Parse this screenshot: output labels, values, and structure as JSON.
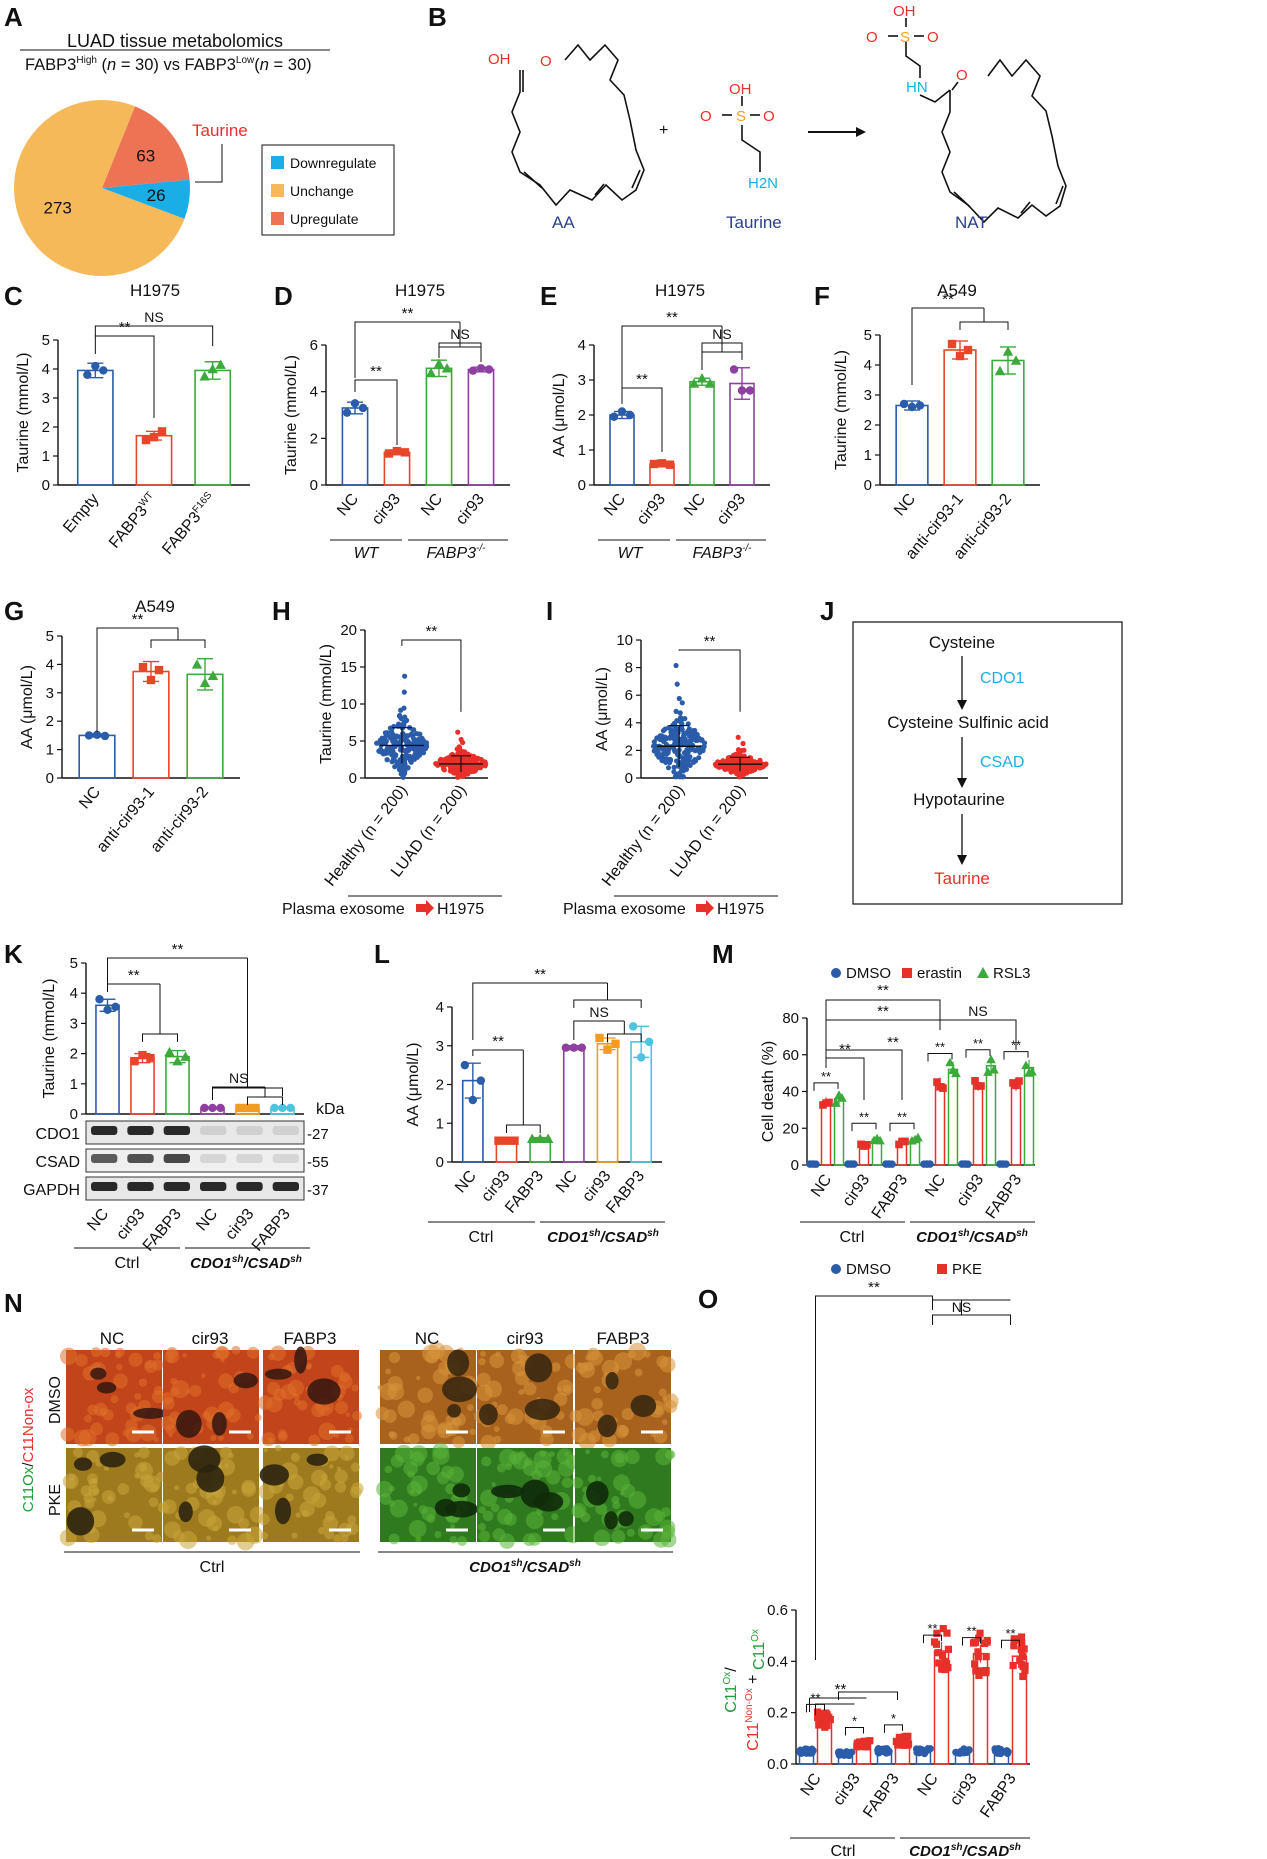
{
  "panels": {
    "A": {
      "label": "A",
      "title": "LUAD tissue metabolomics",
      "subtitle": "FABP3High (n = 30) vs FABP3Low (n = 30)",
      "callout": "Taurine",
      "chart_data": {
        "type": "pie",
        "slices": [
          {
            "name": "Unchange",
            "value": 273,
            "color": "#F5B95A"
          },
          {
            "name": "Upregulate",
            "value": 63,
            "color": "#EE7355"
          },
          {
            "name": "Downregulate",
            "value": 26,
            "color": "#1BAEE6"
          }
        ],
        "legend": [
          "Downregulate",
          "Unchange",
          "Upregulate"
        ],
        "legend_position": "right"
      }
    },
    "B": {
      "label": "B",
      "names": [
        "AA",
        "Taurine",
        "NAT"
      ],
      "plus": "+",
      "atoms": {
        "oh": "OH",
        "o": "O",
        "s": "S",
        "hn": "HN",
        "h2n": "H2N"
      }
    },
    "C": {
      "label": "C",
      "title": "H1975",
      "chart_data": {
        "type": "bar",
        "ylabel": "Taurine (mmol/L)",
        "ylim": [
          0,
          5
        ],
        "yticks": [
          0,
          1,
          2,
          3,
          4,
          5
        ],
        "categories": [
          "Empty",
          "FABP3WT",
          "FABP3F16S"
        ],
        "values": [
          3.95,
          1.7,
          3.95
        ],
        "errors": [
          0.25,
          0.15,
          0.3
        ],
        "points": [
          [
            3.8,
            4.1,
            3.95
          ],
          [
            1.55,
            1.65,
            1.85
          ],
          [
            3.75,
            4.0,
            4.15
          ]
        ],
        "colors": [
          "#2A5CAA",
          "#E8462A",
          "#3BAA3B"
        ],
        "markers": [
          "circle",
          "square",
          "triangle"
        ],
        "sig": [
          {
            "a": 0,
            "b": 1,
            "text": "**"
          },
          {
            "a": 0,
            "b": 2,
            "text": "NS"
          }
        ]
      }
    },
    "D": {
      "label": "D",
      "title": "H1975",
      "chart_data": {
        "type": "bar",
        "ylabel": "Taurine (mmol/L)",
        "ylim": [
          0,
          6
        ],
        "yticks": [
          0,
          2,
          4,
          6
        ],
        "categories": [
          "NC",
          "cir93",
          "NC",
          "cir93"
        ],
        "groups": [
          "WT",
          "FABP3-/-"
        ],
        "values": [
          3.3,
          1.4,
          5.0,
          4.95
        ],
        "errors": [
          0.25,
          0.1,
          0.35,
          0.1
        ],
        "points": [
          [
            3.1,
            3.5,
            3.3
          ],
          [
            1.35,
            1.45,
            1.4
          ],
          [
            4.8,
            5.2,
            5.0
          ],
          [
            4.9,
            5.0,
            4.95
          ]
        ],
        "colors": [
          "#2A5CAA",
          "#E8462A",
          "#3BAA3B",
          "#8E3FA0"
        ],
        "markers": [
          "circle",
          "square",
          "triangle",
          "circle"
        ],
        "sig": [
          {
            "a": 0,
            "b": 1,
            "text": "**"
          },
          {
            "a": 0,
            "b": [
              2,
              3
            ],
            "text": "**"
          },
          {
            "a": 2,
            "b": 3,
            "text": "NS"
          }
        ]
      }
    },
    "E": {
      "label": "E",
      "title": "H1975",
      "chart_data": {
        "type": "bar",
        "ylabel": "AA (μmol/L)",
        "ylim": [
          0,
          4
        ],
        "yticks": [
          0,
          1,
          2,
          3,
          4
        ],
        "categories": [
          "NC",
          "cir93",
          "NC",
          "cir93"
        ],
        "groups": [
          "WT",
          "FABP3-/-"
        ],
        "values": [
          2.0,
          0.6,
          2.95,
          2.9
        ],
        "errors": [
          0.1,
          0.05,
          0.1,
          0.45
        ],
        "points": [
          [
            1.95,
            2.1,
            2.0
          ],
          [
            0.6,
            0.62,
            0.58
          ],
          [
            2.9,
            3.05,
            2.9
          ],
          [
            3.3,
            2.7,
            2.7
          ]
        ],
        "colors": [
          "#2A5CAA",
          "#E8462A",
          "#3BAA3B",
          "#8E3FA0"
        ],
        "markers": [
          "circle",
          "square",
          "triangle",
          "circle"
        ],
        "sig": [
          {
            "a": 0,
            "b": 1,
            "text": "**"
          },
          {
            "a": 0,
            "b": [
              2,
              3
            ],
            "text": "**"
          },
          {
            "a": 2,
            "b": 3,
            "text": "NS"
          }
        ]
      }
    },
    "F": {
      "label": "F",
      "title": "A549",
      "chart_data": {
        "type": "bar",
        "ylabel": "Taurine (mmol/L)",
        "ylim": [
          0,
          5
        ],
        "yticks": [
          0,
          1,
          2,
          3,
          4,
          5
        ],
        "categories": [
          "NC",
          "anti-cir93-1",
          "anti-cir93-2"
        ],
        "values": [
          2.65,
          4.5,
          4.15
        ],
        "errors": [
          0.15,
          0.3,
          0.45
        ],
        "points": [
          [
            2.7,
            2.6,
            2.65
          ],
          [
            4.7,
            4.3,
            4.5
          ],
          [
            3.8,
            4.45,
            4.15
          ]
        ],
        "colors": [
          "#2A5CAA",
          "#E8462A",
          "#3BAA3B"
        ],
        "markers": [
          "circle",
          "square",
          "triangle"
        ],
        "sig": [
          {
            "a": 0,
            "b": [
              1,
              2
            ],
            "text": "**"
          }
        ]
      }
    },
    "G": {
      "label": "G",
      "title": "A549",
      "chart_data": {
        "type": "bar",
        "ylabel": "AA (μmol/L)",
        "ylim": [
          0,
          5
        ],
        "yticks": [
          0,
          1,
          2,
          3,
          4,
          5
        ],
        "categories": [
          "NC",
          "anti-cir93-1",
          "anti-cir93-2"
        ],
        "values": [
          1.5,
          3.75,
          3.65
        ],
        "errors": [
          0.05,
          0.35,
          0.55
        ],
        "points": [
          [
            1.5,
            1.52,
            1.48
          ],
          [
            3.9,
            3.45,
            3.8
          ],
          [
            4.0,
            3.35,
            3.6
          ]
        ],
        "colors": [
          "#2A5CAA",
          "#E8462A",
          "#3BAA3B"
        ],
        "markers": [
          "circle",
          "square",
          "triangle"
        ],
        "sig": [
          {
            "a": 0,
            "b": [
              1,
              2
            ],
            "text": "**"
          }
        ]
      }
    },
    "H": {
      "label": "H",
      "footer_left": "Plasma exosome",
      "footer_right": "H1975",
      "chart_data": {
        "type": "scatter",
        "ylabel": "Taurine (mmol/L)",
        "ylim": [
          0,
          20
        ],
        "yticks": [
          0,
          5,
          10,
          15,
          20
        ],
        "categories": [
          "Healthy (n = 200)",
          "LUAD (n = 200)"
        ],
        "n": [
          200,
          200
        ],
        "means": [
          4.4,
          1.9
        ],
        "sd": [
          2.4,
          1.1
        ],
        "max": [
          16.5,
          6.5
        ],
        "colors": [
          "#2A5CAA",
          "#E8302A"
        ],
        "sig": "**"
      }
    },
    "I": {
      "label": "I",
      "footer_left": "Plasma exosome",
      "footer_right": "H1975",
      "chart_data": {
        "type": "scatter",
        "ylabel": "AA (μmol/L)",
        "ylim": [
          0,
          10
        ],
        "yticks": [
          0,
          2,
          4,
          6,
          8,
          10
        ],
        "categories": [
          "Healthy (n = 200)",
          "LUAD (n = 200)"
        ],
        "n": [
          200,
          200
        ],
        "means": [
          2.3,
          1.0
        ],
        "sd": [
          1.5,
          0.5
        ],
        "max": [
          8.5,
          3.5
        ],
        "colors": [
          "#2A5CAA",
          "#E8302A"
        ],
        "sig": "**"
      }
    },
    "J": {
      "label": "J",
      "steps": [
        "Cysteine",
        "Cysteine Sulfinic acid",
        "Hypotaurine",
        "Taurine"
      ],
      "enzymes": [
        "CDO1",
        "CSAD"
      ]
    },
    "K": {
      "label": "K",
      "wb_rows": [
        "CDO1",
        "CSAD",
        "GAPDH"
      ],
      "kda_label": "kDa",
      "kda": [
        "27",
        "55",
        "37"
      ],
      "groups": [
        "Ctrl",
        "CDO1sh/CSADsh"
      ],
      "chart_data": {
        "type": "bar",
        "ylabel": "Taurine (mmol/L)",
        "ylim": [
          0,
          5
        ],
        "yticks": [
          0,
          1,
          2,
          3,
          4,
          5
        ],
        "categories": [
          "NC",
          "cir93",
          "FABP3",
          "NC",
          "cir93",
          "FABP3"
        ],
        "values": [
          3.6,
          1.85,
          1.9,
          0.2,
          0.2,
          0.2
        ],
        "errors": [
          0.2,
          0.15,
          0.2,
          0.03,
          0.03,
          0.03
        ],
        "points": [
          [
            3.8,
            3.45,
            3.55
          ],
          [
            1.75,
            1.95,
            1.85
          ],
          [
            2.05,
            1.75,
            1.9
          ],
          [
            0.2,
            0.2,
            0.2
          ],
          [
            0.2,
            0.2,
            0.2
          ],
          [
            0.2,
            0.2,
            0.2
          ]
        ],
        "colors": [
          "#2A5CAA",
          "#E8462A",
          "#3BAA3B",
          "#8E3FA0",
          "#F39C22",
          "#4EC3E0"
        ],
        "markers": [
          "circle",
          "square",
          "triangle",
          "circle",
          "square",
          "circle"
        ],
        "sig": [
          {
            "a": 0,
            "b": [
              1,
              2
            ],
            "text": "**"
          },
          {
            "a": 0,
            "b": [
              3,
              4,
              5
            ],
            "text": "**"
          },
          {
            "a": 3,
            "b": [
              4,
              5
            ],
            "text": "NS"
          }
        ]
      }
    },
    "L": {
      "label": "L",
      "groups": [
        "Ctrl",
        "CDO1sh/CSADsh"
      ],
      "chart_data": {
        "type": "bar",
        "ylabel": "AA (μmol/L)",
        "ylim": [
          0,
          4
        ],
        "yticks": [
          0,
          1,
          2,
          3,
          4
        ],
        "categories": [
          "NC",
          "cir93",
          "FABP3",
          "NC",
          "cir93",
          "FABP3"
        ],
        "values": [
          2.1,
          0.55,
          0.6,
          2.95,
          3.05,
          3.1
        ],
        "errors": [
          0.45,
          0.03,
          0.03,
          0.05,
          0.15,
          0.4
        ],
        "points": [
          [
            2.5,
            1.6,
            2.1
          ],
          [
            0.55,
            0.55,
            0.55
          ],
          [
            0.6,
            0.6,
            0.6
          ],
          [
            2.95,
            2.95,
            2.95
          ],
          [
            3.2,
            2.9,
            3.05
          ],
          [
            3.5,
            2.7,
            3.1
          ]
        ],
        "colors": [
          "#2A5CAA",
          "#E8462A",
          "#3BAA3B",
          "#8E3FA0",
          "#F39C22",
          "#4EC3E0"
        ],
        "markers": [
          "circle",
          "square",
          "triangle",
          "circle",
          "square",
          "circle"
        ],
        "sig": [
          {
            "a": 0,
            "b": [
              1,
              2
            ],
            "text": "**"
          },
          {
            "a": 0,
            "b": [
              3,
              4,
              5
            ],
            "text": "**"
          },
          {
            "a": 3,
            "b": [
              4,
              5
            ],
            "text": "NS"
          }
        ]
      }
    },
    "M": {
      "label": "M",
      "groups": [
        "Ctrl",
        "CDO1sh/CSADsh"
      ],
      "chart_data": {
        "type": "bar",
        "ylabel": "Cell death (%)",
        "ylim": [
          0,
          80
        ],
        "yticks": [
          0,
          20,
          40,
          60,
          80
        ],
        "categories": [
          "NC",
          "cir93",
          "FABP3",
          "NC",
          "cir93",
          "FABP3"
        ],
        "series": [
          {
            "name": "DMSO",
            "values": [
              0.5,
              0.5,
              0.5,
              0.5,
              0.5,
              0.5
            ],
            "color": "#2A5CAA"
          },
          {
            "name": "erastin",
            "values": [
              34,
              11,
              12,
              44,
              44,
              44
            ],
            "color": "#E8302A"
          },
          {
            "name": "RSL3",
            "values": [
              36,
              14,
              14,
              52,
              54,
              53
            ],
            "color": "#3BAA3B"
          }
        ],
        "legend_position": "top",
        "sig": [
          "**",
          "**",
          "NS",
          "**"
        ]
      }
    },
    "N": {
      "label": "N",
      "cols_left": [
        "NC",
        "cir93",
        "FABP3"
      ],
      "cols_right": [
        "NC",
        "cir93",
        "FABP3"
      ],
      "rows": [
        "DMSO",
        "PKE"
      ],
      "ylabel_ox": "C11Ox",
      "ylabel_sep": "/",
      "ylabel_nonox": "C11Non-ox",
      "groups": [
        "Ctrl",
        "CDO1sh/CSADsh"
      ]
    },
    "O": {
      "label": "O",
      "groups": [
        "Ctrl",
        "CDO1sh/CSADsh"
      ],
      "chart_data": {
        "type": "bar",
        "ylabel": "C11Ox/ C11Non-Ox + C11Ox",
        "ylim": [
          0,
          0.6
        ],
        "yticks": [
          0.0,
          0.2,
          0.4,
          0.6
        ],
        "categories": [
          "NC",
          "cir93",
          "FABP3",
          "NC",
          "cir93",
          "FABP3"
        ],
        "series": [
          {
            "name": "DMSO",
            "values": [
              0.05,
              0.04,
              0.05,
              0.05,
              0.05,
              0.05
            ],
            "color": "#2A5CAA"
          },
          {
            "name": "PKE",
            "values": [
              0.17,
              0.08,
              0.09,
              0.44,
              0.43,
              0.42
            ],
            "color": "#E8302A"
          }
        ],
        "legend_position": "top",
        "sig": [
          "**",
          "**",
          "NS",
          "**",
          "*"
        ]
      }
    }
  }
}
